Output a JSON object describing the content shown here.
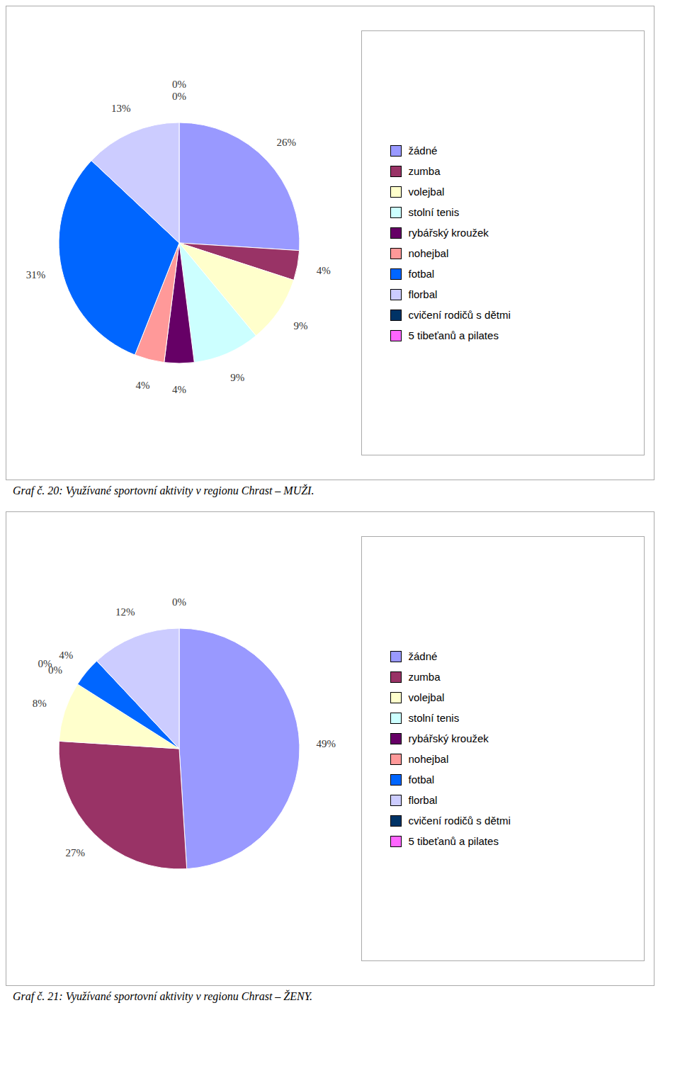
{
  "chart_data": [
    {
      "type": "pie",
      "title": "Graf č. 20: Využívané sportovní aktivity v regionu Chrast – MUŽI.",
      "categories": [
        "žádné",
        "zumba",
        "volejbal",
        "stolní tenis",
        "rybářský kroužek",
        "nohejbal",
        "fotbal",
        "florbal",
        "cvičení rodičů s dětmi",
        "5 tibeťanů a pilates"
      ],
      "values": [
        26,
        4,
        9,
        9,
        4,
        4,
        31,
        13,
        0,
        0
      ],
      "value_labels": [
        "26%",
        "4%",
        "9%",
        "9%",
        "4%",
        "4%",
        "31%",
        "13%",
        "0%",
        "0%"
      ],
      "colors": [
        "#9999FF",
        "#993366",
        "#FFFFCC",
        "#CCFFFF",
        "#660066",
        "#FF9999",
        "#0066FF",
        "#CCCCFF",
        "#003366",
        "#FF66FF"
      ],
      "legend": "right",
      "data_labels": true
    },
    {
      "type": "pie",
      "title": "Graf č. 21: Využívané sportovní aktivity v regionu Chrast – ŽENY.",
      "categories": [
        "žádné",
        "zumba",
        "volejbal",
        "stolní tenis",
        "rybářský kroužek",
        "nohejbal",
        "fotbal",
        "florbal",
        "cvičení rodičů s dětmi",
        "5 tibeťanů a pilates"
      ],
      "values": [
        49,
        27,
        8,
        0,
        0,
        0,
        4,
        12,
        0,
        0
      ],
      "value_labels": [
        "49%",
        "27%",
        "8%",
        "0%",
        "0%",
        null,
        "4%",
        "12%",
        "0%",
        null
      ],
      "colors": [
        "#9999FF",
        "#993366",
        "#FFFFCC",
        "#CCFFFF",
        "#660066",
        "#FF9999",
        "#0066FF",
        "#CCCCFF",
        "#003366",
        "#FF66FF"
      ],
      "legend": "right",
      "data_labels": true
    }
  ]
}
